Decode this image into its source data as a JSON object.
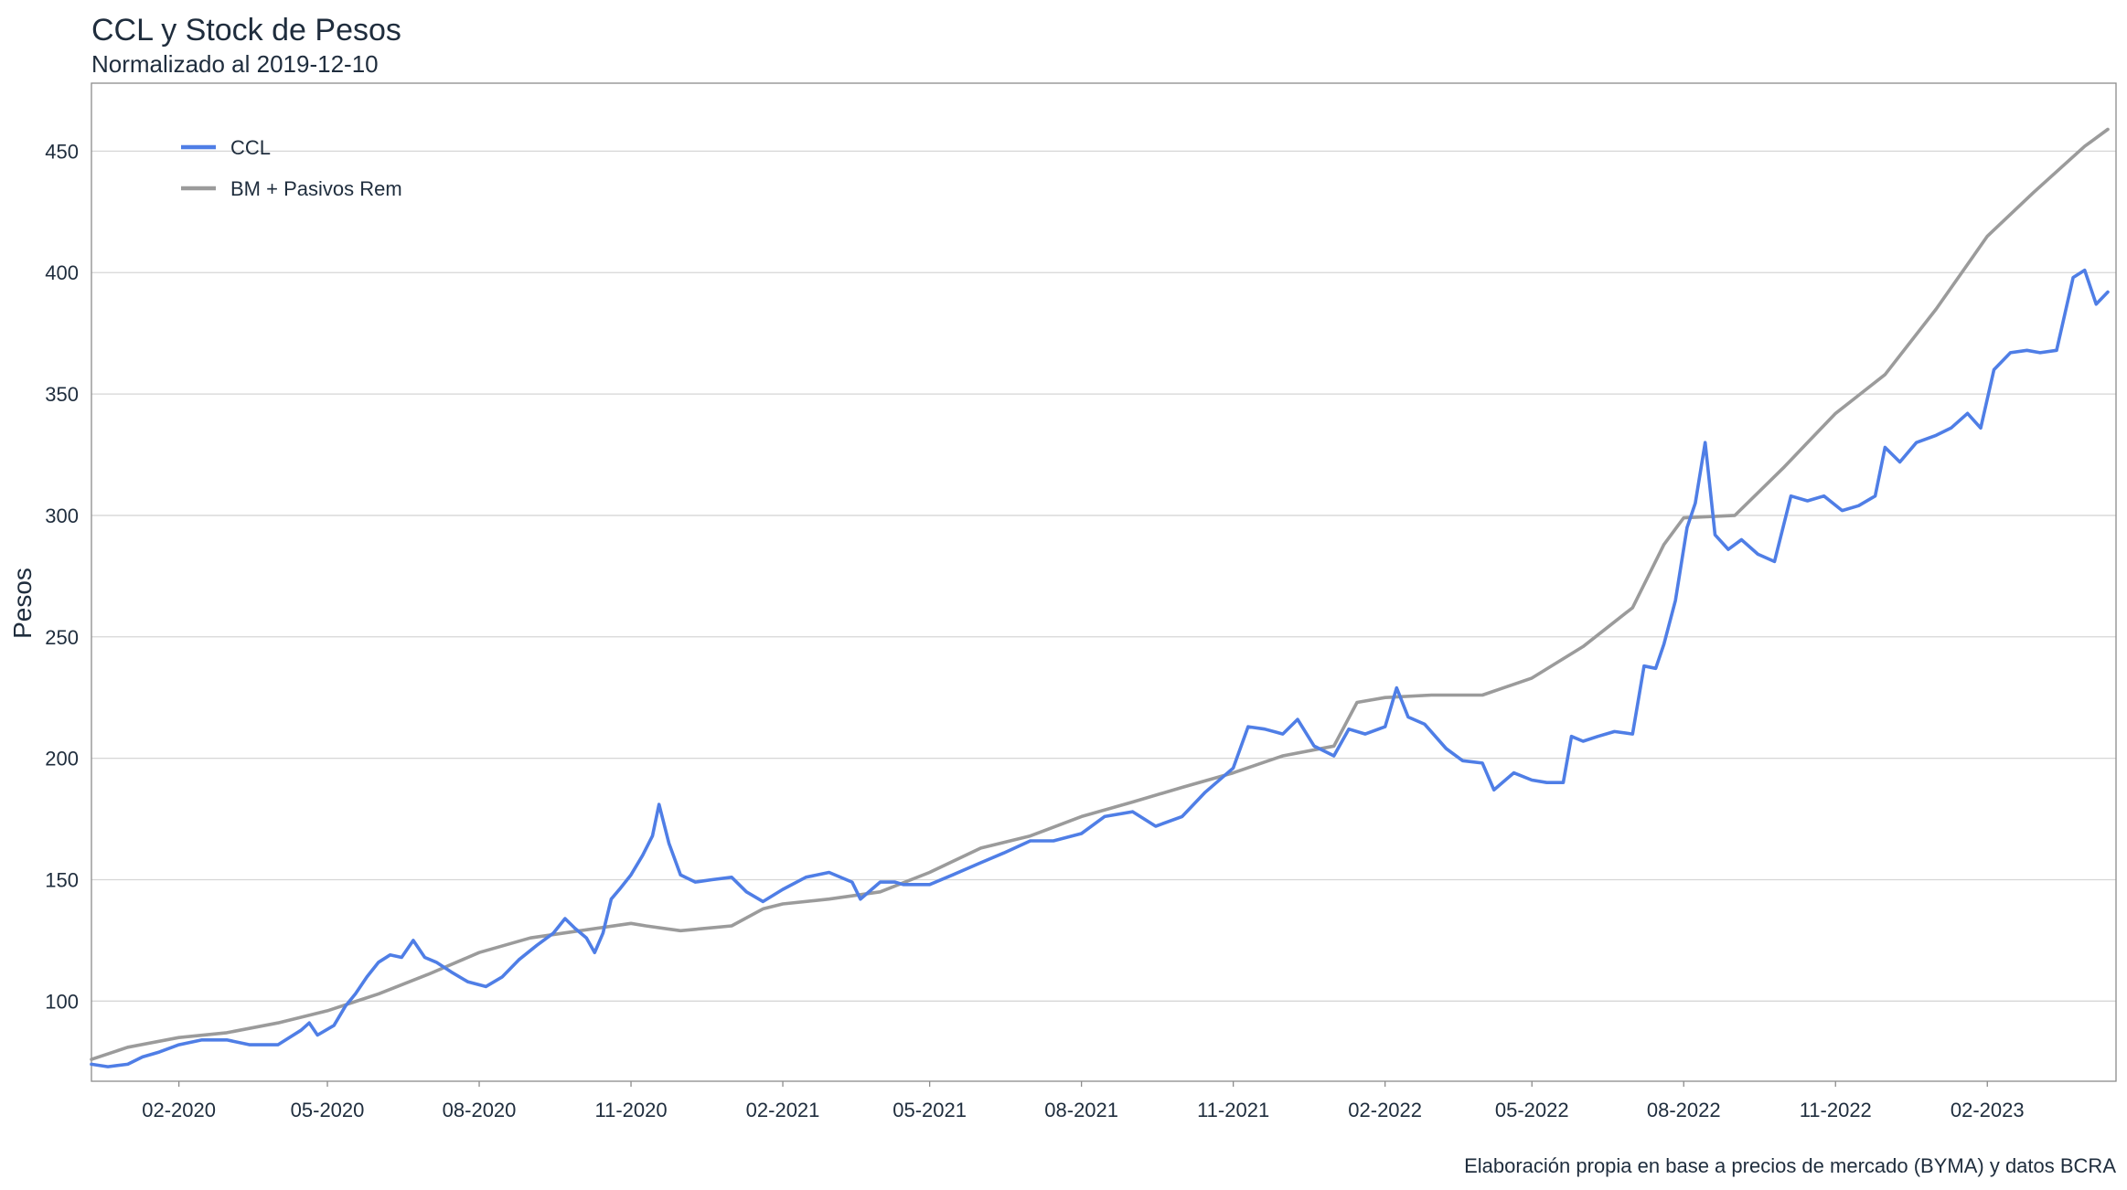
{
  "chart_data": {
    "type": "line",
    "title": "CCL y Stock de Pesos",
    "subtitle": "Normalizado al 2019-12-10",
    "xlabel": "",
    "ylabel": "Pesos",
    "caption": "Elaboración propia en base a precios de mercado (BYMA) y datos BCRA",
    "x_range": [
      "2019-12-10",
      "2023-04-20"
    ],
    "ylim": [
      67,
      478
    ],
    "grid": true,
    "legend_position": "top-left",
    "x_ticks": [
      "2020-02-01",
      "2020-05-01",
      "2020-08-01",
      "2020-11-01",
      "2021-02-01",
      "2021-05-01",
      "2021-08-01",
      "2021-11-01",
      "2022-02-01",
      "2022-05-01",
      "2022-08-01",
      "2022-11-01",
      "2023-02-01"
    ],
    "x_tick_labels": [
      "02-2020",
      "05-2020",
      "08-2020",
      "11-2020",
      "02-2021",
      "05-2021",
      "08-2021",
      "11-2021",
      "02-2022",
      "05-2022",
      "08-2022",
      "11-2022",
      "02-2023"
    ],
    "y_ticks": [
      100,
      150,
      200,
      250,
      300,
      350,
      400,
      450
    ],
    "series": [
      {
        "name": "CCL",
        "color": "#4f7ee6",
        "points": [
          [
            "2019-12-10",
            74
          ],
          [
            "2019-12-20",
            73
          ],
          [
            "2020-01-01",
            74
          ],
          [
            "2020-01-10",
            77
          ],
          [
            "2020-01-20",
            79
          ],
          [
            "2020-02-01",
            82
          ],
          [
            "2020-02-15",
            84
          ],
          [
            "2020-03-01",
            84
          ],
          [
            "2020-03-15",
            82
          ],
          [
            "2020-04-01",
            82
          ],
          [
            "2020-04-15",
            88
          ],
          [
            "2020-04-20",
            91
          ],
          [
            "2020-04-25",
            86
          ],
          [
            "2020-05-05",
            90
          ],
          [
            "2020-05-12",
            98
          ],
          [
            "2020-05-18",
            103
          ],
          [
            "2020-05-25",
            110
          ],
          [
            "2020-06-01",
            116
          ],
          [
            "2020-06-08",
            119
          ],
          [
            "2020-06-15",
            118
          ],
          [
            "2020-06-22",
            125
          ],
          [
            "2020-06-29",
            118
          ],
          [
            "2020-07-06",
            116
          ],
          [
            "2020-07-15",
            112
          ],
          [
            "2020-07-25",
            108
          ],
          [
            "2020-08-05",
            106
          ],
          [
            "2020-08-15",
            110
          ],
          [
            "2020-08-25",
            117
          ],
          [
            "2020-09-05",
            123
          ],
          [
            "2020-09-15",
            128
          ],
          [
            "2020-09-22",
            134
          ],
          [
            "2020-09-28",
            130
          ],
          [
            "2020-10-05",
            126
          ],
          [
            "2020-10-10",
            120
          ],
          [
            "2020-10-15",
            128
          ],
          [
            "2020-10-20",
            142
          ],
          [
            "2020-10-25",
            146
          ],
          [
            "2020-11-01",
            152
          ],
          [
            "2020-11-08",
            160
          ],
          [
            "2020-11-14",
            168
          ],
          [
            "2020-11-18",
            181
          ],
          [
            "2020-11-24",
            165
          ],
          [
            "2020-12-01",
            152
          ],
          [
            "2020-12-10",
            149
          ],
          [
            "2020-12-20",
            150
          ],
          [
            "2021-01-01",
            151
          ],
          [
            "2021-01-10",
            145
          ],
          [
            "2021-01-20",
            141
          ],
          [
            "2021-02-01",
            146
          ],
          [
            "2021-02-15",
            151
          ],
          [
            "2021-03-01",
            153
          ],
          [
            "2021-03-15",
            149
          ],
          [
            "2021-03-20",
            142
          ],
          [
            "2021-04-01",
            149
          ],
          [
            "2021-04-10",
            149
          ],
          [
            "2021-04-15",
            148
          ],
          [
            "2021-05-01",
            148
          ],
          [
            "2021-05-15",
            152
          ],
          [
            "2021-06-01",
            157
          ],
          [
            "2021-06-15",
            161
          ],
          [
            "2021-07-01",
            166
          ],
          [
            "2021-07-15",
            166
          ],
          [
            "2021-08-01",
            169
          ],
          [
            "2021-08-15",
            176
          ],
          [
            "2021-09-01",
            178
          ],
          [
            "2021-09-15",
            172
          ],
          [
            "2021-10-01",
            176
          ],
          [
            "2021-10-15",
            186
          ],
          [
            "2021-11-01",
            196
          ],
          [
            "2021-11-10",
            213
          ],
          [
            "2021-11-20",
            212
          ],
          [
            "2021-12-01",
            210
          ],
          [
            "2021-12-10",
            216
          ],
          [
            "2021-12-20",
            205
          ],
          [
            "2022-01-01",
            201
          ],
          [
            "2022-01-10",
            212
          ],
          [
            "2022-01-20",
            210
          ],
          [
            "2022-02-01",
            213
          ],
          [
            "2022-02-08",
            229
          ],
          [
            "2022-02-15",
            217
          ],
          [
            "2022-02-25",
            214
          ],
          [
            "2022-03-10",
            204
          ],
          [
            "2022-03-20",
            199
          ],
          [
            "2022-04-01",
            198
          ],
          [
            "2022-04-08",
            187
          ],
          [
            "2022-04-20",
            194
          ],
          [
            "2022-05-01",
            191
          ],
          [
            "2022-05-10",
            190
          ],
          [
            "2022-05-20",
            190
          ],
          [
            "2022-05-25",
            209
          ],
          [
            "2022-06-01",
            207
          ],
          [
            "2022-06-10",
            209
          ],
          [
            "2022-06-20",
            211
          ],
          [
            "2022-07-01",
            210
          ],
          [
            "2022-07-08",
            238
          ],
          [
            "2022-07-15",
            237
          ],
          [
            "2022-07-20",
            247
          ],
          [
            "2022-07-27",
            265
          ],
          [
            "2022-08-03",
            295
          ],
          [
            "2022-08-08",
            305
          ],
          [
            "2022-08-14",
            330
          ],
          [
            "2022-08-20",
            292
          ],
          [
            "2022-08-28",
            286
          ],
          [
            "2022-09-05",
            290
          ],
          [
            "2022-09-15",
            284
          ],
          [
            "2022-09-25",
            281
          ],
          [
            "2022-10-05",
            308
          ],
          [
            "2022-10-15",
            306
          ],
          [
            "2022-10-25",
            308
          ],
          [
            "2022-11-05",
            302
          ],
          [
            "2022-11-15",
            304
          ],
          [
            "2022-11-25",
            308
          ],
          [
            "2022-12-01",
            328
          ],
          [
            "2022-12-10",
            322
          ],
          [
            "2022-12-20",
            330
          ],
          [
            "2023-01-01",
            333
          ],
          [
            "2023-01-10",
            336
          ],
          [
            "2023-01-20",
            342
          ],
          [
            "2023-01-28",
            336
          ],
          [
            "2023-02-05",
            360
          ],
          [
            "2023-02-15",
            367
          ],
          [
            "2023-02-25",
            368
          ],
          [
            "2023-03-05",
            367
          ],
          [
            "2023-03-15",
            368
          ],
          [
            "2023-03-25",
            398
          ],
          [
            "2023-04-01",
            401
          ],
          [
            "2023-04-08",
            387
          ],
          [
            "2023-04-15",
            392
          ]
        ]
      },
      {
        "name": "BM + Pasivos Rem",
        "color": "#9b9b9b",
        "points": [
          [
            "2019-12-10",
            76
          ],
          [
            "2020-01-01",
            81
          ],
          [
            "2020-02-01",
            85
          ],
          [
            "2020-03-01",
            87
          ],
          [
            "2020-04-01",
            91
          ],
          [
            "2020-05-01",
            96
          ],
          [
            "2020-06-01",
            103
          ],
          [
            "2020-07-01",
            111
          ],
          [
            "2020-08-01",
            120
          ],
          [
            "2020-09-01",
            126
          ],
          [
            "2020-10-01",
            129
          ],
          [
            "2020-11-01",
            132
          ],
          [
            "2020-11-10",
            131
          ],
          [
            "2020-12-01",
            129
          ],
          [
            "2021-01-01",
            131
          ],
          [
            "2021-01-20",
            138
          ],
          [
            "2021-02-01",
            140
          ],
          [
            "2021-03-01",
            142
          ],
          [
            "2021-04-01",
            145
          ],
          [
            "2021-05-01",
            153
          ],
          [
            "2021-06-01",
            163
          ],
          [
            "2021-07-01",
            168
          ],
          [
            "2021-08-01",
            176
          ],
          [
            "2021-09-01",
            182
          ],
          [
            "2021-10-01",
            188
          ],
          [
            "2021-11-01",
            194
          ],
          [
            "2021-12-01",
            201
          ],
          [
            "2022-01-01",
            205
          ],
          [
            "2022-01-15",
            223
          ],
          [
            "2022-02-01",
            225
          ],
          [
            "2022-03-01",
            226
          ],
          [
            "2022-04-01",
            226
          ],
          [
            "2022-05-01",
            233
          ],
          [
            "2022-06-01",
            246
          ],
          [
            "2022-07-01",
            262
          ],
          [
            "2022-07-20",
            288
          ],
          [
            "2022-08-01",
            299
          ],
          [
            "2022-09-01",
            300
          ],
          [
            "2022-10-01",
            320
          ],
          [
            "2022-10-15",
            330
          ],
          [
            "2022-11-01",
            342
          ],
          [
            "2022-12-01",
            358
          ],
          [
            "2023-01-01",
            385
          ],
          [
            "2023-02-01",
            415
          ],
          [
            "2023-03-01",
            433
          ],
          [
            "2023-04-01",
            452
          ],
          [
            "2023-04-15",
            459
          ]
        ]
      }
    ]
  }
}
